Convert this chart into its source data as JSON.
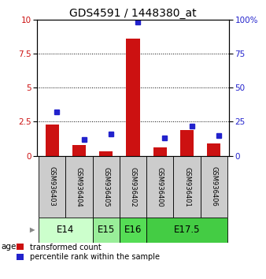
{
  "title": "GDS4591 / 1448380_at",
  "samples": [
    "GSM936403",
    "GSM936404",
    "GSM936405",
    "GSM936402",
    "GSM936400",
    "GSM936401",
    "GSM936406"
  ],
  "transformed_counts": [
    2.3,
    0.8,
    0.3,
    8.6,
    0.6,
    1.9,
    0.9
  ],
  "percentile_ranks": [
    32,
    12,
    16,
    98,
    13,
    22,
    15
  ],
  "age_groups": [
    {
      "label": "E14",
      "span": [
        0,
        2
      ],
      "color": "#ccffcc"
    },
    {
      "label": "E15",
      "span": [
        2,
        3
      ],
      "color": "#99ee99"
    },
    {
      "label": "E16",
      "span": [
        3,
        4
      ],
      "color": "#55dd55"
    },
    {
      "label": "E17.5",
      "span": [
        4,
        7
      ],
      "color": "#44cc44"
    }
  ],
  "ylim_left": [
    0,
    10
  ],
  "ylim_right": [
    0,
    100
  ],
  "yticks_left": [
    0,
    2.5,
    5,
    7.5,
    10
  ],
  "yticks_right": [
    0,
    25,
    50,
    75,
    100
  ],
  "bar_color_red": "#cc1111",
  "marker_color_blue": "#2222cc",
  "bg_plot": "#ffffff",
  "bg_sample": "#cccccc",
  "title_fontsize": 10,
  "tick_fontsize": 7.5,
  "sample_fontsize": 6,
  "age_label_fontsize": 8.5,
  "legend_fontsize": 7
}
